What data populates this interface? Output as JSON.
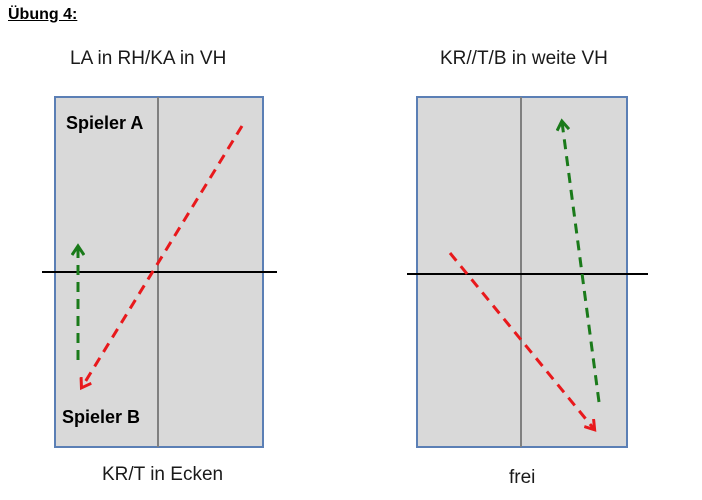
{
  "heading": "Übung 4:",
  "left_table": {
    "caption_top": "LA in RH/KA in VH",
    "caption_bottom": "KR/T in Ecken",
    "label_player_a": "Spieler A",
    "label_player_b": "Spieler B"
  },
  "right_table": {
    "caption_top": "KR//T/B in weite VH",
    "caption_bottom": "frei"
  },
  "colors": {
    "table_fill": "#d9d9d9",
    "table_border": "#5b7fb5",
    "center_line": "#808080",
    "net_line": "#000000",
    "red_arrow": "#e8191c",
    "green_arrow": "#1a7a1a"
  }
}
